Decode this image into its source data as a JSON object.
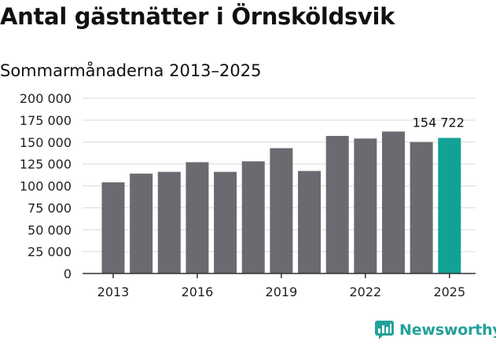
{
  "title": "Antal gästnätter i Örnsköldsvik",
  "subtitle": "Sommarmånaderna 2013–2025",
  "brand": {
    "name": "Newsworthy",
    "color": "#24a19a"
  },
  "colors": {
    "bar": "#6b6a70",
    "highlight": "#12a195",
    "grid": "#d9d9d9",
    "axis": "#333333"
  },
  "chart_data": {
    "type": "bar",
    "categories": [
      "2013",
      "2014",
      "2015",
      "2016",
      "2017",
      "2018",
      "2019",
      "2020",
      "2021",
      "2022",
      "2023",
      "2024",
      "2025"
    ],
    "values": [
      104000,
      114000,
      116000,
      127000,
      116000,
      128000,
      143000,
      117000,
      157000,
      154000,
      162000,
      150000,
      154722
    ],
    "highlight_index": 12,
    "data_labels": {
      "12": "154 722"
    },
    "ylim": [
      0,
      200000
    ],
    "yticks": [
      0,
      25000,
      50000,
      75000,
      100000,
      125000,
      150000,
      175000,
      200000
    ],
    "ytick_labels": [
      "0",
      "25 000",
      "50 000",
      "75 000",
      "100 000",
      "125 000",
      "150 000",
      "175 000",
      "200 000"
    ],
    "xtick_labels": [
      "2013",
      "2016",
      "2019",
      "2022",
      "2025"
    ],
    "xtick_indices": [
      0,
      3,
      6,
      9,
      12
    ],
    "grid": true,
    "xlabel": "",
    "ylabel": ""
  }
}
